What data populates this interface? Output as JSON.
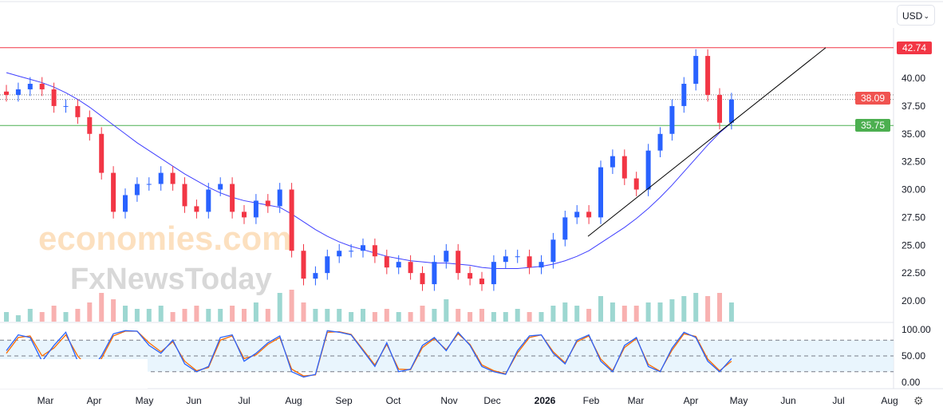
{
  "currency_selector": {
    "label": "USD"
  },
  "watermark": {
    "line1": "economies.com",
    "line2": "FxNewsToday"
  },
  "levels": {
    "resistance": "42.74",
    "last": "38.09",
    "support": "35.75",
    "resistance_color": "#f23645",
    "last_color": "#f05350",
    "support_color": "#4caf50"
  },
  "chart_data": {
    "type": "candlestick",
    "price_axis": {
      "ticks": [
        "40.00",
        "37.50",
        "35.00",
        "32.50",
        "30.00",
        "27.50",
        "25.00",
        "22.50",
        "20.00"
      ],
      "range": [
        19,
        44
      ]
    },
    "time_axis": {
      "labels": [
        "Mar",
        "Apr",
        "May",
        "Jun",
        "Jul",
        "Aug",
        "Sep",
        "Oct",
        "Nov",
        "Dec",
        "2026",
        "Feb",
        "Mar",
        "Apr",
        "May",
        "Jun",
        "Jul",
        "Aug"
      ]
    },
    "closes": [
      38.5,
      39,
      39.5,
      39,
      37.5,
      37.5,
      36.5,
      35,
      31.5,
      28,
      29.5,
      30.5,
      30.5,
      31.5,
      30.5,
      28.5,
      28,
      30,
      30.5,
      28,
      27.5,
      29,
      28.5,
      30,
      24.5,
      22,
      22.5,
      24,
      24.5,
      24.5,
      25,
      24,
      23,
      23.5,
      22.5,
      21.5,
      23.5,
      24.5,
      22.5,
      22,
      21.5,
      23.5,
      24,
      24,
      23,
      23.5,
      25.5,
      27.5,
      28,
      27.5,
      32,
      33,
      31,
      30,
      33.5,
      35,
      37.5,
      39.5,
      42,
      38.5,
      36,
      38.09
    ],
    "moving_average": [
      40.5,
      40.2,
      39.9,
      39.6,
      39.2,
      38.7,
      38.1,
      37.4,
      36.6,
      35.8,
      35,
      34.2,
      33.5,
      32.8,
      32.1,
      31.4,
      30.8,
      30.2,
      29.7,
      29.3,
      29,
      28.8,
      28.6,
      28.4,
      27.8,
      27.1,
      26.4,
      25.8,
      25.3,
      24.9,
      24.6,
      24.3,
      24,
      23.8,
      23.6,
      23.5,
      23.4,
      23.4,
      23.3,
      23.2,
      23,
      22.9,
      22.9,
      22.9,
      23,
      23.1,
      23.3,
      23.6,
      24,
      24.5,
      25.2,
      25.9,
      26.6,
      27.4,
      28.3,
      29.3,
      30.4,
      31.6,
      32.8,
      34,
      35.1,
      36
    ],
    "volume": [
      3,
      2,
      4,
      3,
      5,
      3,
      4,
      6,
      9,
      7,
      5,
      4,
      4,
      5,
      3,
      4,
      5,
      4,
      4,
      5,
      4,
      6,
      4,
      9,
      10,
      6,
      4,
      4,
      4,
      3,
      4,
      3,
      4,
      3,
      3,
      5,
      4,
      7,
      4,
      3,
      4,
      3,
      3,
      4,
      3,
      3,
      5,
      6,
      5,
      4,
      8,
      6,
      5,
      5,
      6,
      6,
      7,
      8,
      9,
      8,
      9,
      6
    ],
    "stoch_k": [
      60,
      90,
      85,
      40,
      70,
      95,
      40,
      20,
      50,
      92,
      98,
      97,
      70,
      55,
      80,
      35,
      20,
      30,
      85,
      90,
      40,
      55,
      75,
      88,
      20,
      10,
      15,
      98,
      95,
      90,
      60,
      30,
      75,
      20,
      25,
      70,
      85,
      60,
      95,
      70,
      30,
      20,
      15,
      60,
      88,
      90,
      55,
      35,
      80,
      90,
      40,
      20,
      70,
      85,
      30,
      20,
      65,
      95,
      85,
      40,
      20,
      45
    ],
    "stoch_d": [
      55,
      85,
      88,
      50,
      65,
      90,
      50,
      25,
      45,
      88,
      97,
      97,
      75,
      58,
      77,
      40,
      22,
      28,
      80,
      88,
      45,
      52,
      72,
      85,
      25,
      12,
      14,
      95,
      96,
      91,
      62,
      33,
      72,
      25,
      24,
      66,
      83,
      62,
      92,
      72,
      33,
      22,
      16,
      56,
      85,
      90,
      58,
      37,
      77,
      88,
      44,
      22,
      66,
      83,
      34,
      21,
      61,
      92,
      87,
      44,
      22,
      40
    ],
    "stoch_axis": {
      "ticks": [
        "100.00",
        "50.00",
        "0.00"
      ],
      "upper": 80,
      "middle": 50,
      "lower": 20
    },
    "up_color": "#2962ff",
    "down_color": "#f23645"
  }
}
